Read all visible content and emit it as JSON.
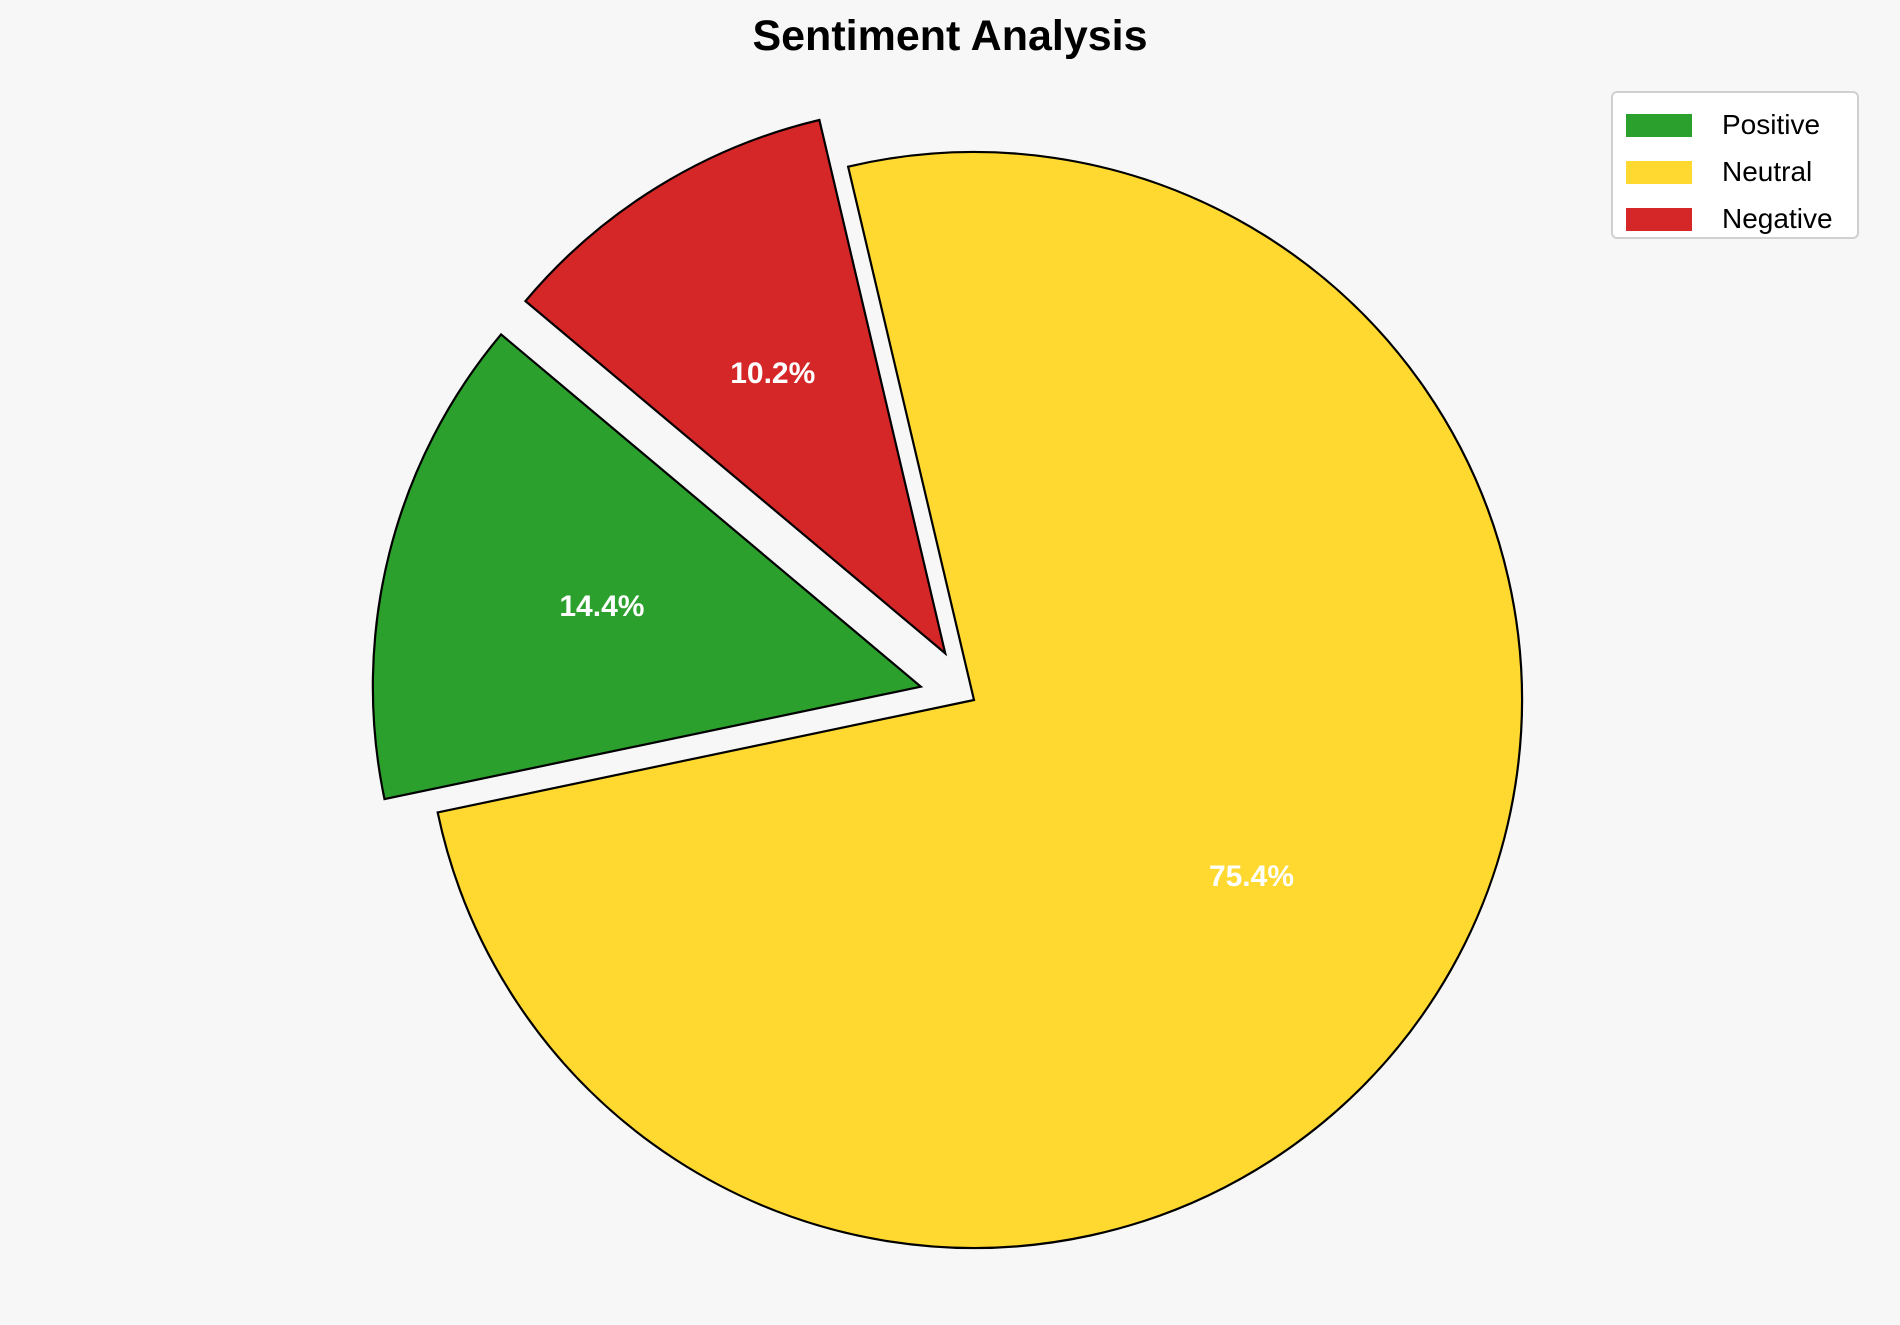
{
  "chart_data": {
    "type": "pie",
    "title": "Sentiment Analysis",
    "categories": [
      "Positive",
      "Neutral",
      "Negative"
    ],
    "values": [
      14.4,
      75.4,
      10.2
    ],
    "labels": [
      "14.4%",
      "75.4%",
      "10.2%"
    ],
    "colors": [
      "#2ca02c",
      "#ffd92f",
      "#d62728"
    ],
    "explode": [
      0.1,
      0,
      0.1
    ],
    "start_angle": 140,
    "legend_position": "top-right"
  }
}
